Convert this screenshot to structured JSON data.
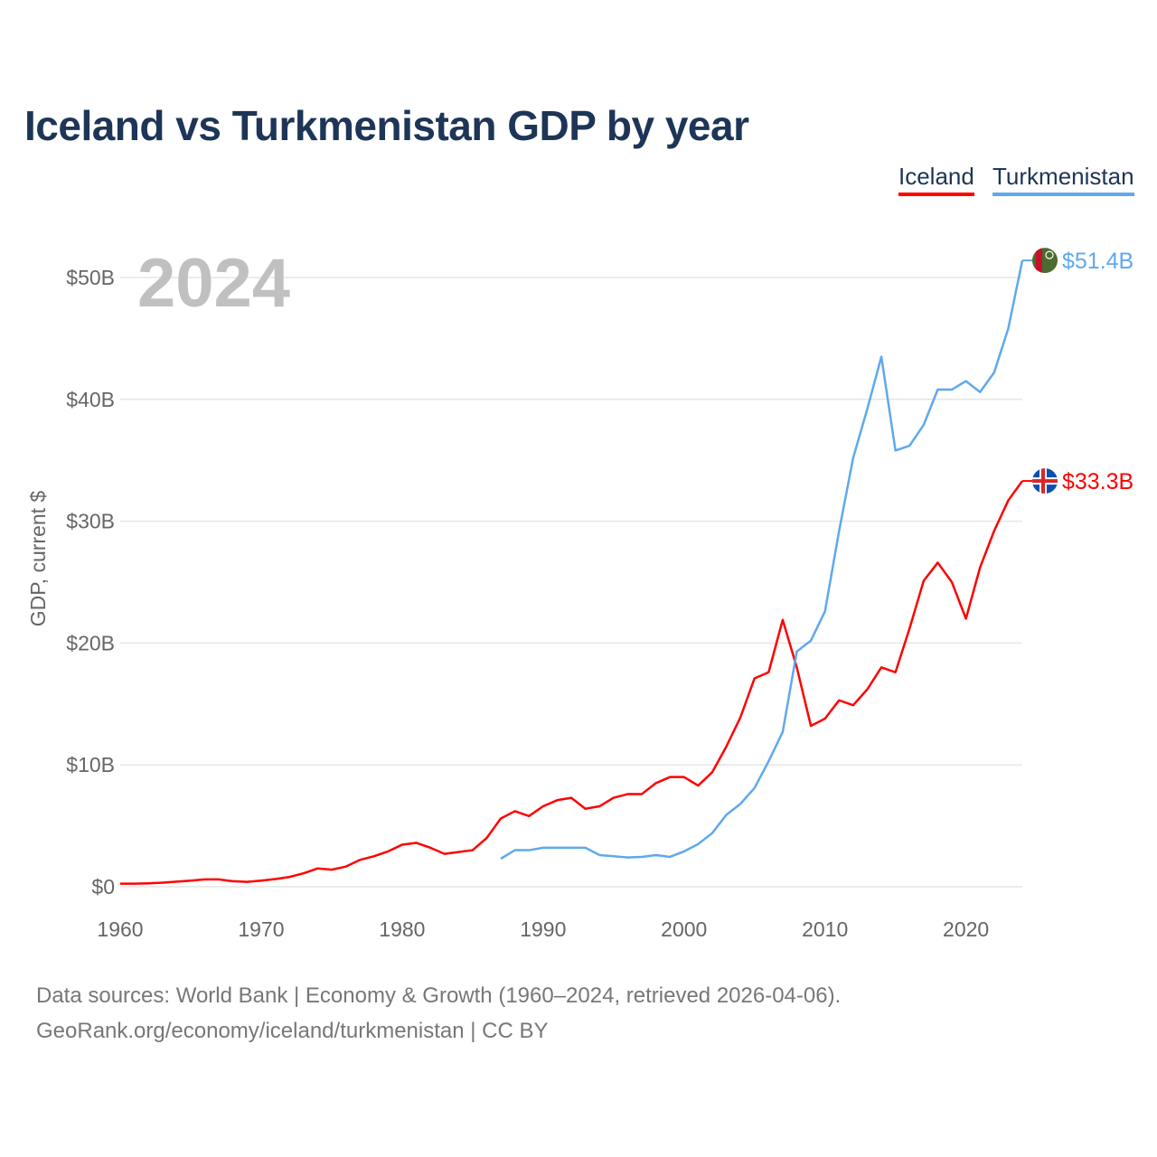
{
  "title": "Iceland vs Turkmenistan GDP by year",
  "legend": {
    "iceland": "Iceland",
    "turkmenistan": "Turkmenistan"
  },
  "footer": {
    "line1": "Data sources: World Bank | Economy & Growth (1960–2024, retrieved 2026-04-06).",
    "line2": "GeoRank.org/economy/iceland/turkmenistan | CC BY"
  },
  "chart_data": {
    "type": "line",
    "title": "Iceland vs Turkmenistan GDP by year",
    "year_label": "2024",
    "xlabel": "",
    "ylabel": "GDP, current $",
    "xlim": [
      1960,
      2024
    ],
    "ylim": [
      0,
      50
    ],
    "x_ticks": [
      "1960",
      "1970",
      "1980",
      "1990",
      "2000",
      "2010",
      "2020"
    ],
    "y_ticks": [
      {
        "v": 0,
        "label": "$0"
      },
      {
        "v": 10,
        "label": "$10B"
      },
      {
        "v": 20,
        "label": "$20B"
      },
      {
        "v": 30,
        "label": "$30B"
      },
      {
        "v": 40,
        "label": "$40B"
      },
      {
        "v": 50,
        "label": "$50B"
      }
    ],
    "grid": true,
    "legend_position": "top-right",
    "series": [
      {
        "name": "Iceland",
        "color": "#ff0000",
        "start_year": 1960,
        "end_label": "$33.3B",
        "flag": "iceland-flag",
        "values": [
          0.25,
          0.25,
          0.28,
          0.33,
          0.42,
          0.5,
          0.6,
          0.6,
          0.45,
          0.4,
          0.5,
          0.63,
          0.8,
          1.1,
          1.5,
          1.4,
          1.65,
          2.2,
          2.5,
          2.9,
          3.45,
          3.6,
          3.2,
          2.7,
          2.85,
          3.0,
          4.0,
          5.6,
          6.2,
          5.8,
          6.6,
          7.1,
          7.3,
          6.4,
          6.6,
          7.3,
          7.6,
          7.6,
          8.5,
          9.0,
          9.0,
          8.3,
          9.4,
          11.5,
          13.9,
          17.1,
          17.6,
          21.9,
          18.0,
          13.2,
          13.8,
          15.3,
          14.9,
          16.2,
          18.0,
          17.6,
          21.2,
          25.1,
          26.6,
          25.0,
          22.0,
          26.2,
          29.2,
          31.7,
          33.3
        ]
      },
      {
        "name": "Turkmenistan",
        "color": "#5fa8ee",
        "start_year": 1987,
        "end_label": "$51.4B",
        "flag": "turkmenistan-flag",
        "values": [
          2.3,
          3.0,
          3.0,
          3.2,
          3.2,
          3.2,
          3.2,
          2.6,
          2.5,
          2.4,
          2.45,
          2.6,
          2.45,
          2.9,
          3.5,
          4.4,
          5.9,
          6.8,
          8.1,
          10.3,
          12.7,
          19.3,
          20.2,
          22.6,
          29.2,
          35.2,
          39.2,
          43.5,
          35.8,
          36.2,
          37.9,
          40.8,
          40.8,
          41.5,
          40.6,
          42.2,
          45.8,
          51.4
        ]
      }
    ]
  }
}
